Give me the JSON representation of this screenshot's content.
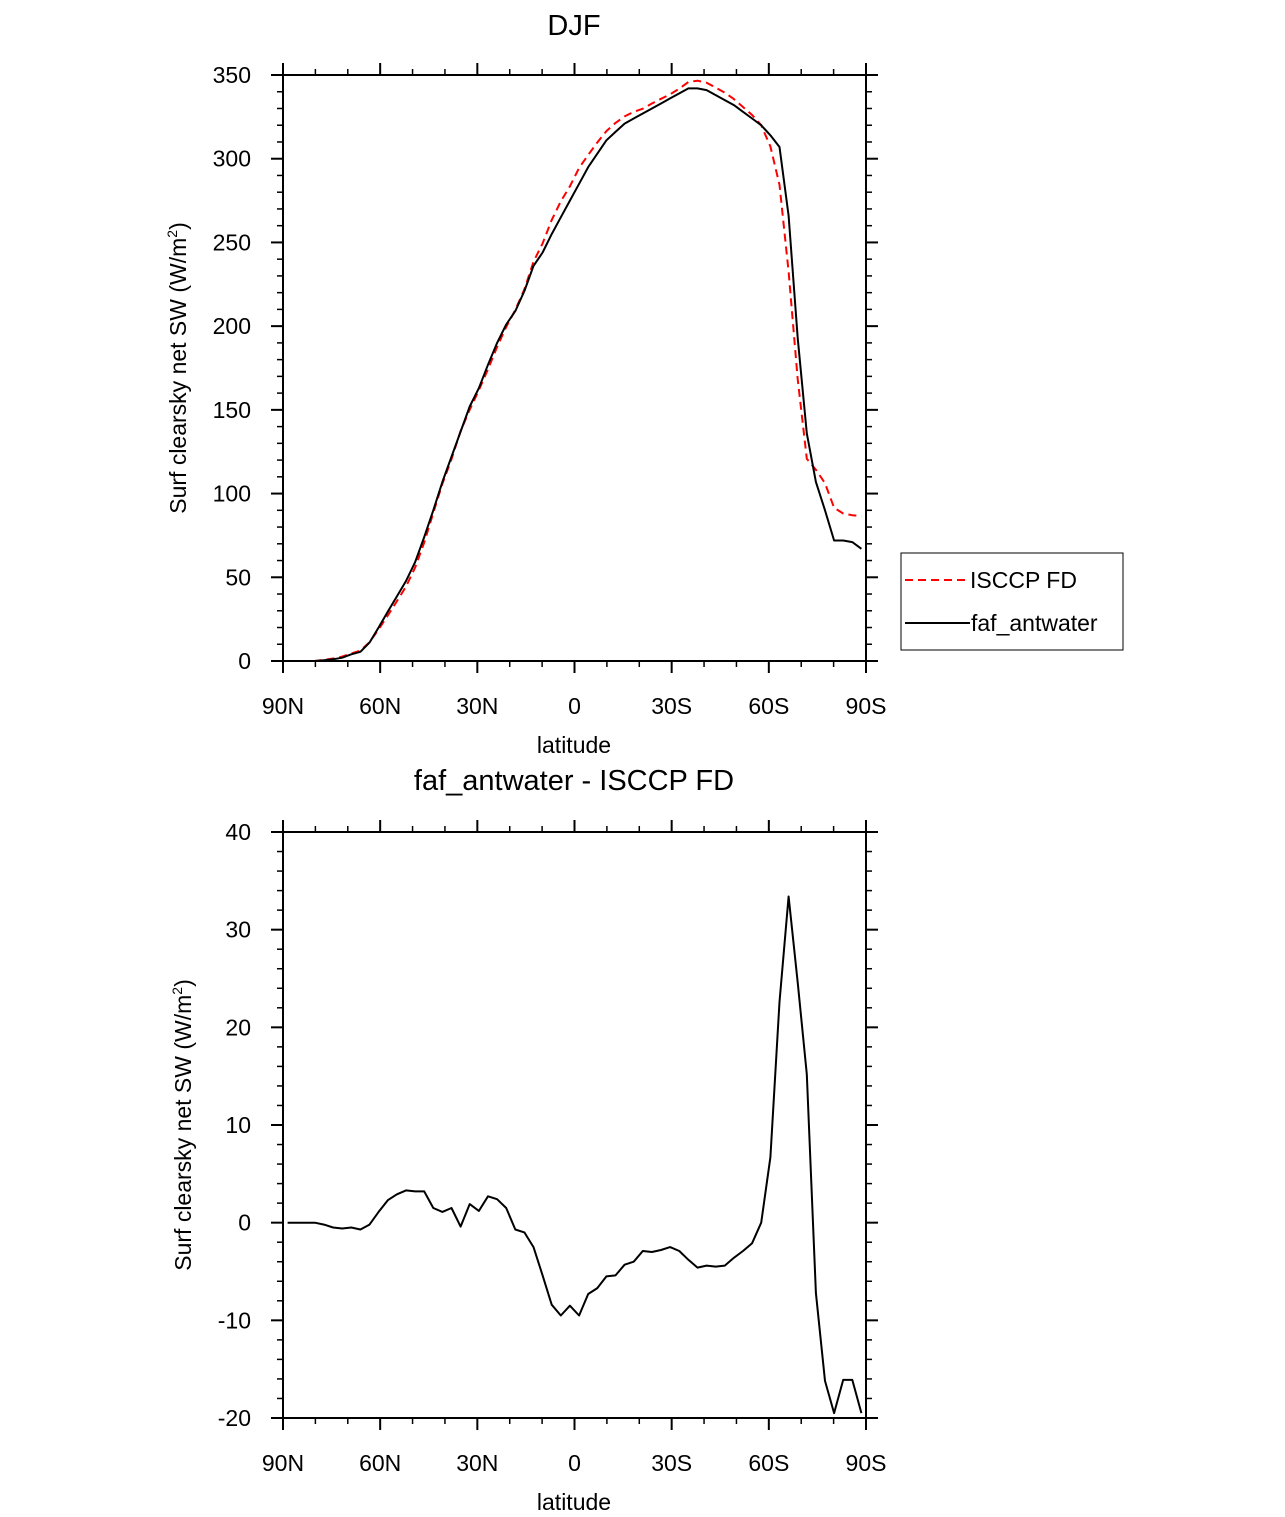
{
  "chart_data": [
    {
      "type": "line",
      "title": "DJF",
      "xlabel": "latitude",
      "ylabel": "Surf clearsky net SW (W/m",
      "ylabel_sup": "2",
      "ylabel_close": ")",
      "xlim": [
        90,
        -90
      ],
      "ylim": [
        0,
        350
      ],
      "xticks": [
        90,
        60,
        30,
        0,
        -30,
        -60,
        -90
      ],
      "xtick_labels": [
        "90N",
        "60N",
        "30N",
        "0",
        "30S",
        "60S",
        "90S"
      ],
      "yticks": [
        0,
        50,
        100,
        150,
        200,
        250,
        300,
        350
      ],
      "ytick_labels": [
        "0",
        "50",
        "100",
        "150",
        "200",
        "250",
        "300",
        "350"
      ],
      "legend": {
        "placement": "right",
        "entries": [
          "ISCCP FD",
          "faf_antwater"
        ]
      },
      "series": [
        {
          "name": "ISCCP FD",
          "color": "#ff0000",
          "dash": "dashed",
          "values": [
            0,
            0,
            0,
            0,
            0.7,
            1.5,
            2.6,
            4.5,
            6.2,
            11.2,
            18.9,
            27.2,
            35.7,
            44.5,
            55.8,
            70.8,
            88.5,
            105.9,
            120.5,
            137.4,
            150.1,
            161.8,
            174.3,
            187.6,
            199.5,
            209.7,
            222,
            238.5,
            249.4,
            263.4,
            274.5,
            283.5,
            294.5,
            302.3,
            309.7,
            316.5,
            321.4,
            325.3,
            328,
            329.9,
            333,
            335.8,
            338.5,
            341.9,
            345.8,
            346.6,
            345.4,
            342.5,
            339.4,
            335.6,
            330.9,
            326.1,
            320,
            307.3,
            284.4,
            232.6,
            168.4,
            120.8,
            114.2,
            106.2,
            91.5,
            88.1,
            87.1,
            86.5
          ]
        },
        {
          "name": "faf_antwater",
          "color": "#000000",
          "dash": "solid",
          "values": [
            0,
            0,
            0,
            0,
            0.5,
            1,
            2,
            4,
            5.5,
            11,
            20,
            29.5,
            38.6,
            47.8,
            59,
            74,
            90,
            107,
            122,
            137,
            152,
            163,
            177,
            190,
            201,
            209,
            221,
            236,
            244,
            255,
            265,
            275,
            285,
            295,
            303,
            311,
            316,
            321,
            324,
            327,
            330,
            333,
            336,
            339,
            342,
            342,
            341,
            338,
            335,
            332,
            328,
            324,
            320,
            314,
            307,
            266,
            193,
            136,
            107,
            90,
            72,
            72,
            71,
            67
          ]
        }
      ]
    },
    {
      "type": "line",
      "title": "faf_antwater - ISCCP FD",
      "xlabel": "latitude",
      "ylabel": "Surf clearsky net SW (W/m",
      "ylabel_sup": "2",
      "ylabel_close": ")",
      "xlim": [
        90,
        -90
      ],
      "ylim": [
        -20,
        40
      ],
      "xticks": [
        90,
        60,
        30,
        0,
        -30,
        -60,
        -90
      ],
      "xtick_labels": [
        "90N",
        "60N",
        "30N",
        "0",
        "30S",
        "60S",
        "90S"
      ],
      "yticks": [
        -20,
        -10,
        0,
        10,
        20,
        30,
        40
      ],
      "ytick_labels": [
        "-20",
        "-10",
        "0",
        "10",
        "20",
        "30",
        "40"
      ],
      "series": [
        {
          "name": "faf_antwater - ISCCP FD",
          "color": "#000000",
          "dash": "solid",
          "values": [
            0,
            0,
            0,
            0,
            -0.2,
            -0.5,
            -0.6,
            -0.5,
            -0.7,
            -0.2,
            1.1,
            2.3,
            2.9,
            3.3,
            3.2,
            3.2,
            1.5,
            1.1,
            1.5,
            -0.4,
            1.9,
            1.2,
            2.7,
            2.4,
            1.5,
            -0.7,
            -1.0,
            -2.5,
            -5.4,
            -8.4,
            -9.5,
            -8.5,
            -9.5,
            -7.3,
            -6.7,
            -5.5,
            -5.4,
            -4.3,
            -4.0,
            -2.9,
            -3.0,
            -2.8,
            -2.5,
            -2.9,
            -3.8,
            -4.6,
            -4.4,
            -4.5,
            -4.4,
            -3.6,
            -2.9,
            -2.1,
            0,
            6.7,
            22.6,
            33.4,
            24.6,
            15.2,
            -7.2,
            -16.2,
            -19.5,
            -16.1,
            -16.1,
            -19.5
          ]
        }
      ]
    }
  ]
}
